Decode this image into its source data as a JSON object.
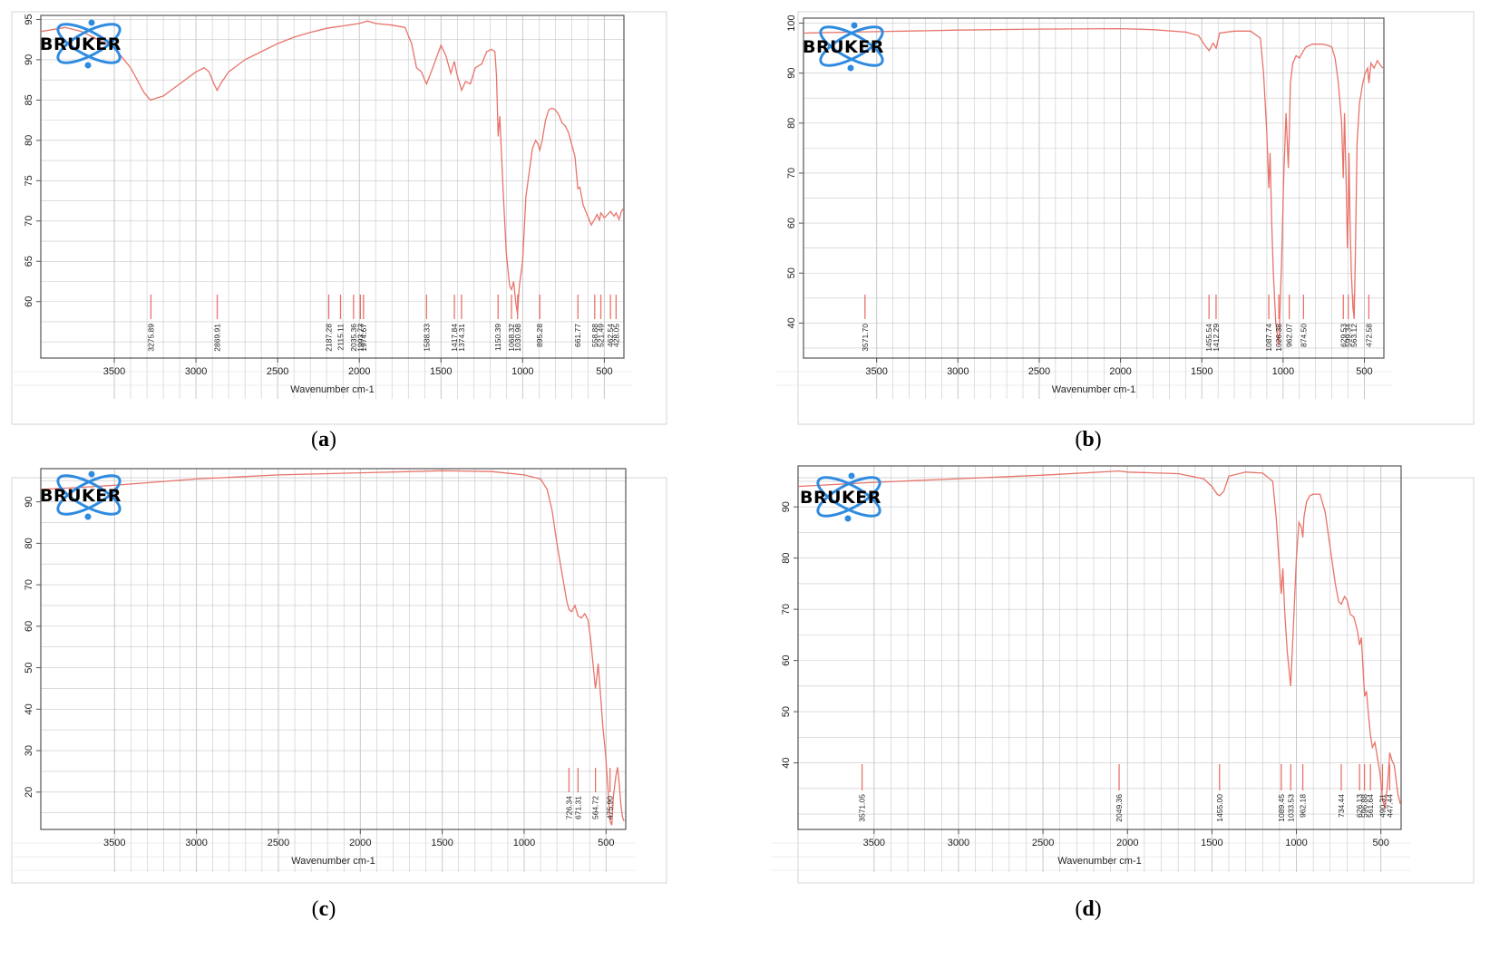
{
  "colors": {
    "spectrum": "#e8736a",
    "peak": "#e8736a",
    "grid": "#c8c8c8",
    "frame": "#555555",
    "logo": "#2f8be0"
  },
  "logo_text": "BRUKER",
  "chart_data": [
    {
      "type": "line",
      "panel": "(a)",
      "caption_prefix": "(",
      "caption_letter": "a",
      "caption_suffix": ")",
      "xlabel": "Wavenumber cm-1",
      "xlim": [
        3950,
        380
      ],
      "ylim": [
        53,
        95.5
      ],
      "xticks": [
        3500,
        3000,
        2500,
        2000,
        1500,
        1000,
        500
      ],
      "yticks": [
        60,
        65,
        70,
        75,
        80,
        85,
        90,
        95
      ],
      "x": [
        3950,
        3800,
        3700,
        3600,
        3500,
        3400,
        3320,
        3280,
        3200,
        3100,
        3000,
        2950,
        2920,
        2890,
        2870,
        2850,
        2800,
        2700,
        2600,
        2500,
        2400,
        2300,
        2200,
        2100,
        2000,
        1950,
        1900,
        1800,
        1720,
        1680,
        1650,
        1620,
        1600,
        1588,
        1560,
        1500,
        1470,
        1440,
        1418,
        1400,
        1385,
        1374,
        1350,
        1320,
        1290,
        1250,
        1220,
        1190,
        1170,
        1160,
        1150,
        1140,
        1120,
        1100,
        1080,
        1068,
        1055,
        1040,
        1031,
        1020,
        1000,
        980,
        960,
        940,
        920,
        905,
        895,
        880,
        860,
        840,
        820,
        800,
        780,
        760,
        740,
        720,
        700,
        680,
        662,
        650,
        630,
        600,
        580,
        560,
        545,
        530,
        521,
        500,
        480,
        462,
        440,
        428,
        410,
        395,
        385
      ],
      "y": [
        93.5,
        94,
        93.5,
        92.5,
        91.5,
        89,
        86,
        85,
        85.5,
        87,
        88.5,
        89,
        88.5,
        87,
        86.2,
        87,
        88.5,
        90,
        91,
        92,
        92.8,
        93.4,
        93.9,
        94.2,
        94.5,
        94.8,
        94.5,
        94.3,
        94,
        92,
        89,
        88.5,
        87.5,
        87,
        88.5,
        91.8,
        90.5,
        88.3,
        89.8,
        88,
        87,
        86.2,
        87.3,
        87,
        89,
        89.5,
        91,
        91.3,
        91,
        88,
        80.5,
        83,
        74,
        66,
        62,
        61.5,
        62.5,
        59.5,
        58.5,
        62,
        65,
        73,
        76,
        79,
        80,
        79.5,
        78.8,
        80,
        82.5,
        83.8,
        84,
        83.8,
        83.2,
        82.2,
        81.8,
        81,
        79.5,
        78,
        74,
        74.2,
        72,
        70.5,
        69.5,
        70.2,
        70.8,
        70.1,
        71,
        70.4,
        70.8,
        71.2,
        70.6,
        71,
        70.2,
        71.2,
        71.5
      ],
      "peaks": [
        "3275.89",
        "2869.91",
        "2187.28",
        "2115.11",
        "2035.36",
        "1993.73",
        "1974.67",
        "1588.33",
        "1417.84",
        "1374.31",
        "1150.39",
        "1068.32",
        "1030.98",
        "895.28",
        "661.77",
        "558.88",
        "521.49",
        "462.54",
        "428.05"
      ],
      "peak_positions": [
        3275.89,
        2869.91,
        2187.28,
        2115.11,
        2035.36,
        1993.73,
        1974.67,
        1588.33,
        1417.84,
        1374.31,
        1150.39,
        1068.32,
        1030.98,
        895.28,
        661.77,
        558.88,
        521.49,
        462.54,
        428.05
      ]
    },
    {
      "type": "line",
      "panel": "(b)",
      "caption_prefix": "(",
      "caption_letter": "b",
      "caption_suffix": ")",
      "xlabel": "Wavenumber cm-1",
      "xlim": [
        3950,
        380
      ],
      "ylim": [
        33,
        101
      ],
      "xticks": [
        3500,
        3000,
        2500,
        2000,
        1500,
        1000,
        500
      ],
      "yticks": [
        40,
        50,
        60,
        70,
        80,
        90,
        100
      ],
      "x": [
        3950,
        3500,
        3000,
        2500,
        2000,
        1800,
        1600,
        1520,
        1480,
        1455,
        1430,
        1412,
        1390,
        1300,
        1200,
        1140,
        1120,
        1100,
        1088,
        1080,
        1070,
        1060,
        1045,
        1026,
        1010,
        995,
        982,
        975,
        968,
        962,
        955,
        940,
        920,
        900,
        874,
        860,
        820,
        760,
        720,
        700,
        680,
        660,
        640,
        630,
        622,
        612,
        604,
        599,
        595,
        588,
        580,
        570,
        563,
        556,
        545,
        530,
        510,
        495,
        480,
        472,
        460,
        440,
        420,
        400,
        385
      ],
      "y": [
        98,
        98.3,
        98.6,
        98.8,
        98.9,
        98.7,
        98.2,
        97.5,
        95.5,
        94.5,
        96,
        95,
        98,
        98.4,
        98.4,
        97,
        90,
        78,
        67,
        74,
        60,
        50,
        40,
        35.5,
        52,
        70,
        82,
        77,
        71,
        78,
        88,
        92,
        93.5,
        93,
        94.5,
        95.2,
        95.8,
        95.8,
        95.5,
        95.2,
        93,
        88,
        80,
        69,
        82,
        68,
        55,
        62,
        74,
        60,
        50,
        43,
        41,
        52,
        76,
        84,
        88,
        90,
        91,
        88,
        92,
        91,
        92.5,
        91.5,
        91
      ],
      "peaks": [
        "3571.70",
        "1455.54",
        "1412.29",
        "1087.74",
        "1026.38",
        "962.07",
        "874.50",
        "629.53",
        "599.34",
        "563.12",
        "472.58"
      ],
      "peak_positions": [
        3571.7,
        1455.54,
        1412.29,
        1087.74,
        1026.38,
        962.07,
        874.5,
        629.53,
        599.34,
        563.12,
        472.58
      ]
    },
    {
      "type": "line",
      "panel": "(c)",
      "caption_prefix": "(",
      "caption_letter": "c",
      "caption_suffix": ")",
      "xlabel": "Wavenumber cm-1",
      "xlim": [
        3950,
        380
      ],
      "ylim": [
        11,
        98
      ],
      "xticks": [
        3500,
        3000,
        2500,
        2000,
        1500,
        1000,
        500
      ],
      "yticks": [
        20,
        30,
        40,
        50,
        60,
        70,
        80,
        90
      ],
      "x": [
        3950,
        3700,
        3500,
        3000,
        2500,
        2000,
        1500,
        1200,
        1000,
        900,
        860,
        830,
        800,
        770,
        740,
        726,
        710,
        690,
        671,
        650,
        630,
        610,
        595,
        585,
        575,
        565,
        558,
        548,
        535,
        520,
        505,
        490,
        476,
        465,
        455,
        440,
        430,
        420,
        410,
        400,
        390
      ],
      "y": [
        93,
        93.5,
        94,
        95.5,
        96.5,
        97,
        97.5,
        97.3,
        96.5,
        95.5,
        93,
        88,
        80,
        73,
        66,
        64,
        63.5,
        65,
        62.5,
        62,
        63,
        61.5,
        57,
        53,
        49,
        45,
        47,
        51,
        44,
        36,
        30,
        22,
        13,
        12,
        19,
        24,
        26,
        22,
        17,
        14,
        13
      ],
      "peaks": [
        "726.34",
        "671.31",
        "564.72",
        "475.90"
      ],
      "peak_positions": [
        726.34,
        671.31,
        564.72,
        475.9
      ]
    },
    {
      "type": "line",
      "panel": "(d)",
      "caption_prefix": "(",
      "caption_letter": "d",
      "caption_suffix": ")",
      "xlabel": "Wavenumber cm-1",
      "xlim": [
        3950,
        380
      ],
      "ylim": [
        27,
        98
      ],
      "xticks": [
        3500,
        3000,
        2500,
        2000,
        1500,
        1000,
        500
      ],
      "yticks": [
        40,
        50,
        60,
        70,
        80,
        90
      ],
      "x": [
        3950,
        3500,
        3000,
        2500,
        2049,
        2000,
        1700,
        1550,
        1500,
        1470,
        1455,
        1430,
        1400,
        1300,
        1200,
        1140,
        1120,
        1100,
        1089,
        1080,
        1070,
        1055,
        1034,
        1020,
        1000,
        985,
        970,
        962,
        955,
        940,
        920,
        900,
        860,
        830,
        800,
        770,
        750,
        734,
        715,
        700,
        680,
        660,
        640,
        626,
        615,
        605,
        596,
        585,
        575,
        562,
        550,
        535,
        520,
        505,
        490,
        475,
        460,
        447,
        435,
        420,
        400,
        385
      ],
      "y": [
        94,
        94.8,
        95.5,
        96.2,
        97,
        96.8,
        96.5,
        95.5,
        94,
        92.5,
        92.2,
        93,
        96,
        96.8,
        96.6,
        95,
        88,
        78,
        73,
        78,
        70,
        62,
        55,
        65,
        80,
        87,
        86,
        84,
        88,
        91,
        92.2,
        92.5,
        92.5,
        89,
        82,
        75,
        71.5,
        71,
        72.5,
        71.8,
        69,
        68.5,
        66,
        63,
        64.5,
        58,
        53,
        54,
        50,
        45.5,
        43,
        44,
        41,
        38,
        33,
        31,
        36,
        42,
        40.5,
        39.5,
        34,
        32
      ],
      "peaks": [
        "3571.05",
        "2049.36",
        "1455.00",
        "1089.45",
        "1033.53",
        "962.18",
        "734.44",
        "626.13",
        "596.88",
        "561.64",
        "490.31",
        "447.44"
      ],
      "peak_positions": [
        3571.05,
        2049.36,
        1455.0,
        1089.45,
        1033.53,
        962.18,
        734.44,
        626.13,
        596.88,
        561.64,
        490.31,
        447.44
      ]
    }
  ]
}
